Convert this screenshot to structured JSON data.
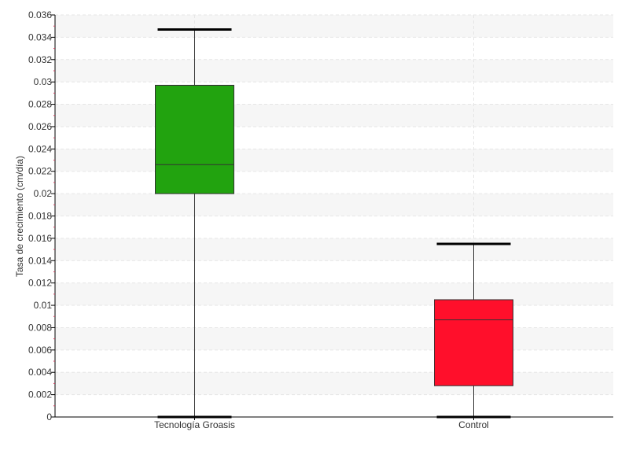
{
  "chart_data": {
    "type": "box",
    "title": "",
    "xlabel": "",
    "ylabel": "Tasa de crecimiento (cm/día)",
    "ylim": [
      0,
      0.036
    ],
    "y_ticks": [
      {
        "value": 0,
        "label": "0"
      },
      {
        "value": 0.002,
        "label": "0.002"
      },
      {
        "value": 0.004,
        "label": "0.004"
      },
      {
        "value": 0.006,
        "label": "0.006"
      },
      {
        "value": 0.008,
        "label": "0.008"
      },
      {
        "value": 0.01,
        "label": "0.01"
      },
      {
        "value": 0.012,
        "label": "0.012"
      },
      {
        "value": 0.014,
        "label": "0.014"
      },
      {
        "value": 0.016,
        "label": "0.016"
      },
      {
        "value": 0.018,
        "label": "0.018"
      },
      {
        "value": 0.02,
        "label": "0.02"
      },
      {
        "value": 0.022,
        "label": "0.022"
      },
      {
        "value": 0.024,
        "label": "0.024"
      },
      {
        "value": 0.026,
        "label": "0.026"
      },
      {
        "value": 0.028,
        "label": "0.028"
      },
      {
        "value": 0.03,
        "label": "0.03"
      },
      {
        "value": 0.032,
        "label": "0.032"
      },
      {
        "value": 0.034,
        "label": "0.034"
      },
      {
        "value": 0.036,
        "label": "0.036"
      }
    ],
    "categories": [
      "Tecnología Groasis",
      "Control"
    ],
    "boxes": [
      {
        "category": "Tecnología Groasis",
        "min": 0.0,
        "q1": 0.02,
        "median": 0.0226,
        "q3": 0.0297,
        "max": 0.0347,
        "color": "#22a30f"
      },
      {
        "category": "Control",
        "min": 0.0,
        "q1": 0.0028,
        "median": 0.0087,
        "q3": 0.0105,
        "max": 0.0155,
        "color": "#ff0f2b"
      }
    ],
    "grid": true,
    "legend": "none"
  }
}
